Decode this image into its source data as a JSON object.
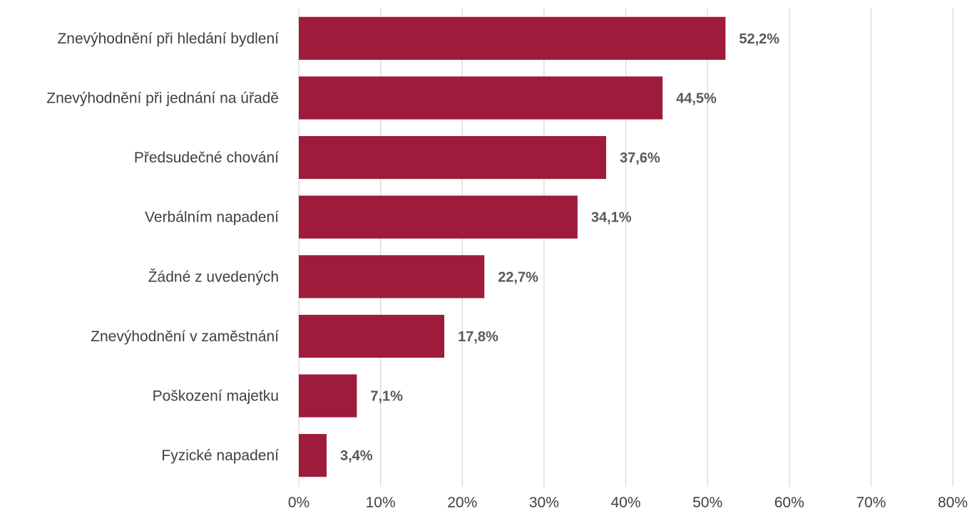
{
  "chart_data": {
    "type": "bar",
    "orientation": "horizontal",
    "title": "",
    "xlabel": "",
    "ylabel": "",
    "categories": [
      "Znevýhodnění při hledání bydlení",
      "Znevýhodnění při jednání na úřadě",
      "Předsudečné chování",
      "Verbálním napadení",
      "Žádné z uvedených",
      "Znevýhodnění v zaměstnání",
      "Poškození majetku",
      "Fyzické napadení"
    ],
    "values": [
      52.2,
      44.5,
      37.6,
      34.1,
      22.7,
      17.8,
      7.1,
      3.4
    ],
    "data_labels": [
      "52,2%",
      "44,5%",
      "37,6%",
      "34,1%",
      "22,7%",
      "17,8%",
      "7,1%",
      "3,4%"
    ],
    "xlim": [
      0,
      80
    ],
    "x_ticks": [
      0,
      10,
      20,
      30,
      40,
      50,
      60,
      70,
      80
    ],
    "x_tick_labels": [
      "0%",
      "10%",
      "20%",
      "30%",
      "40%",
      "50%",
      "60%",
      "70%",
      "80%"
    ],
    "grid": "vertical",
    "legend": "none",
    "bar_color": "#9e1b3c"
  }
}
